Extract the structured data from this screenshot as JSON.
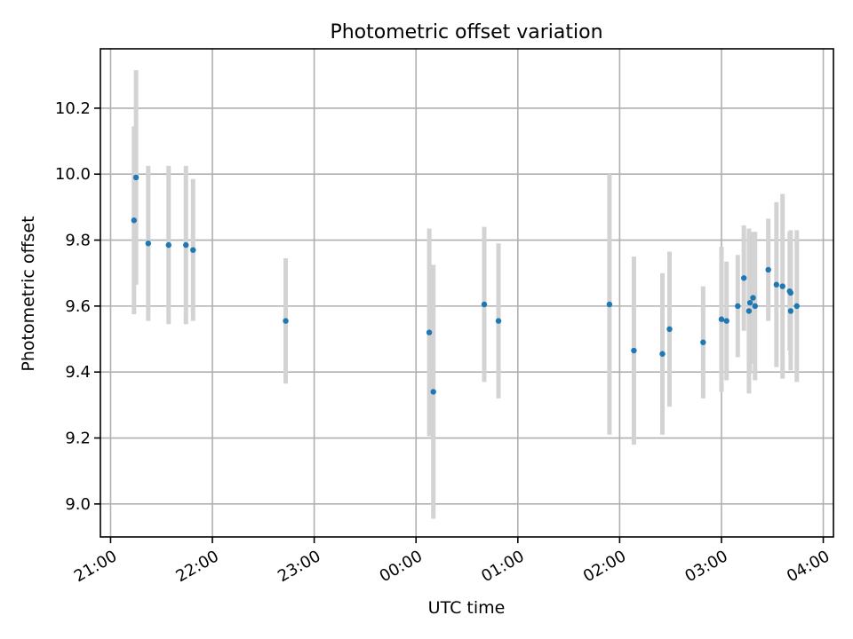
{
  "chart_data": {
    "type": "scatter",
    "title": "Photometric offset variation",
    "xlabel": "UTC time",
    "ylabel": "Photometric offset",
    "x_unit": "UTC time (hours from 21:00)",
    "xlim": [
      -0.1,
      7.1
    ],
    "ylim": [
      8.9,
      10.38
    ],
    "x_ticks": [
      {
        "value": 0,
        "label": "21:00"
      },
      {
        "value": 1,
        "label": "22:00"
      },
      {
        "value": 2,
        "label": "23:00"
      },
      {
        "value": 3,
        "label": "00:00"
      },
      {
        "value": 4,
        "label": "01:00"
      },
      {
        "value": 5,
        "label": "02:00"
      },
      {
        "value": 6,
        "label": "03:00"
      },
      {
        "value": 7,
        "label": "04:00"
      }
    ],
    "y_ticks": [
      {
        "value": 9.0,
        "label": "9.0"
      },
      {
        "value": 9.2,
        "label": "9.2"
      },
      {
        "value": 9.4,
        "label": "9.4"
      },
      {
        "value": 9.6,
        "label": "9.6"
      },
      {
        "value": 9.8,
        "label": "9.8"
      },
      {
        "value": 10.0,
        "label": "10.0"
      },
      {
        "value": 10.2,
        "label": "10.2"
      }
    ],
    "grid": true,
    "colors": {
      "points": "#1f77b4",
      "error_bars": "#d3d3d3",
      "grid": "#b0b0b0"
    },
    "points": [
      {
        "x": 0.23,
        "y": 9.86,
        "err": 0.285
      },
      {
        "x": 0.25,
        "y": 9.99,
        "err": 0.325
      },
      {
        "x": 0.37,
        "y": 9.79,
        "err": 0.235
      },
      {
        "x": 0.57,
        "y": 9.785,
        "err": 0.24
      },
      {
        "x": 0.74,
        "y": 9.785,
        "err": 0.24
      },
      {
        "x": 0.81,
        "y": 9.77,
        "err": 0.215
      },
      {
        "x": 1.72,
        "y": 9.555,
        "err": 0.19
      },
      {
        "x": 3.13,
        "y": 9.52,
        "err": 0.315
      },
      {
        "x": 3.17,
        "y": 9.34,
        "err": 0.385
      },
      {
        "x": 3.67,
        "y": 9.605,
        "err": 0.235
      },
      {
        "x": 3.81,
        "y": 9.555,
        "err": 0.235
      },
      {
        "x": 4.9,
        "y": 9.605,
        "err": 0.395
      },
      {
        "x": 5.14,
        "y": 9.465,
        "err": 0.285
      },
      {
        "x": 5.42,
        "y": 9.455,
        "err": 0.245
      },
      {
        "x": 5.49,
        "y": 9.53,
        "err": 0.235
      },
      {
        "x": 5.82,
        "y": 9.49,
        "err": 0.17
      },
      {
        "x": 6.0,
        "y": 9.56,
        "err": 0.22
      },
      {
        "x": 6.05,
        "y": 9.555,
        "err": 0.18
      },
      {
        "x": 6.16,
        "y": 9.6,
        "err": 0.155
      },
      {
        "x": 6.22,
        "y": 9.685,
        "err": 0.16
      },
      {
        "x": 6.27,
        "y": 9.585,
        "err": 0.25
      },
      {
        "x": 6.28,
        "y": 9.61,
        "err": 0.215
      },
      {
        "x": 6.31,
        "y": 9.625,
        "err": 0.2
      },
      {
        "x": 6.33,
        "y": 9.6,
        "err": 0.225
      },
      {
        "x": 6.46,
        "y": 9.71,
        "err": 0.155
      },
      {
        "x": 6.54,
        "y": 9.665,
        "err": 0.25
      },
      {
        "x": 6.6,
        "y": 9.66,
        "err": 0.28
      },
      {
        "x": 6.67,
        "y": 9.645,
        "err": 0.18
      },
      {
        "x": 6.68,
        "y": 9.64,
        "err": 0.19
      },
      {
        "x": 6.68,
        "y": 9.585,
        "err": 0.18
      },
      {
        "x": 6.74,
        "y": 9.6,
        "err": 0.23
      }
    ]
  }
}
